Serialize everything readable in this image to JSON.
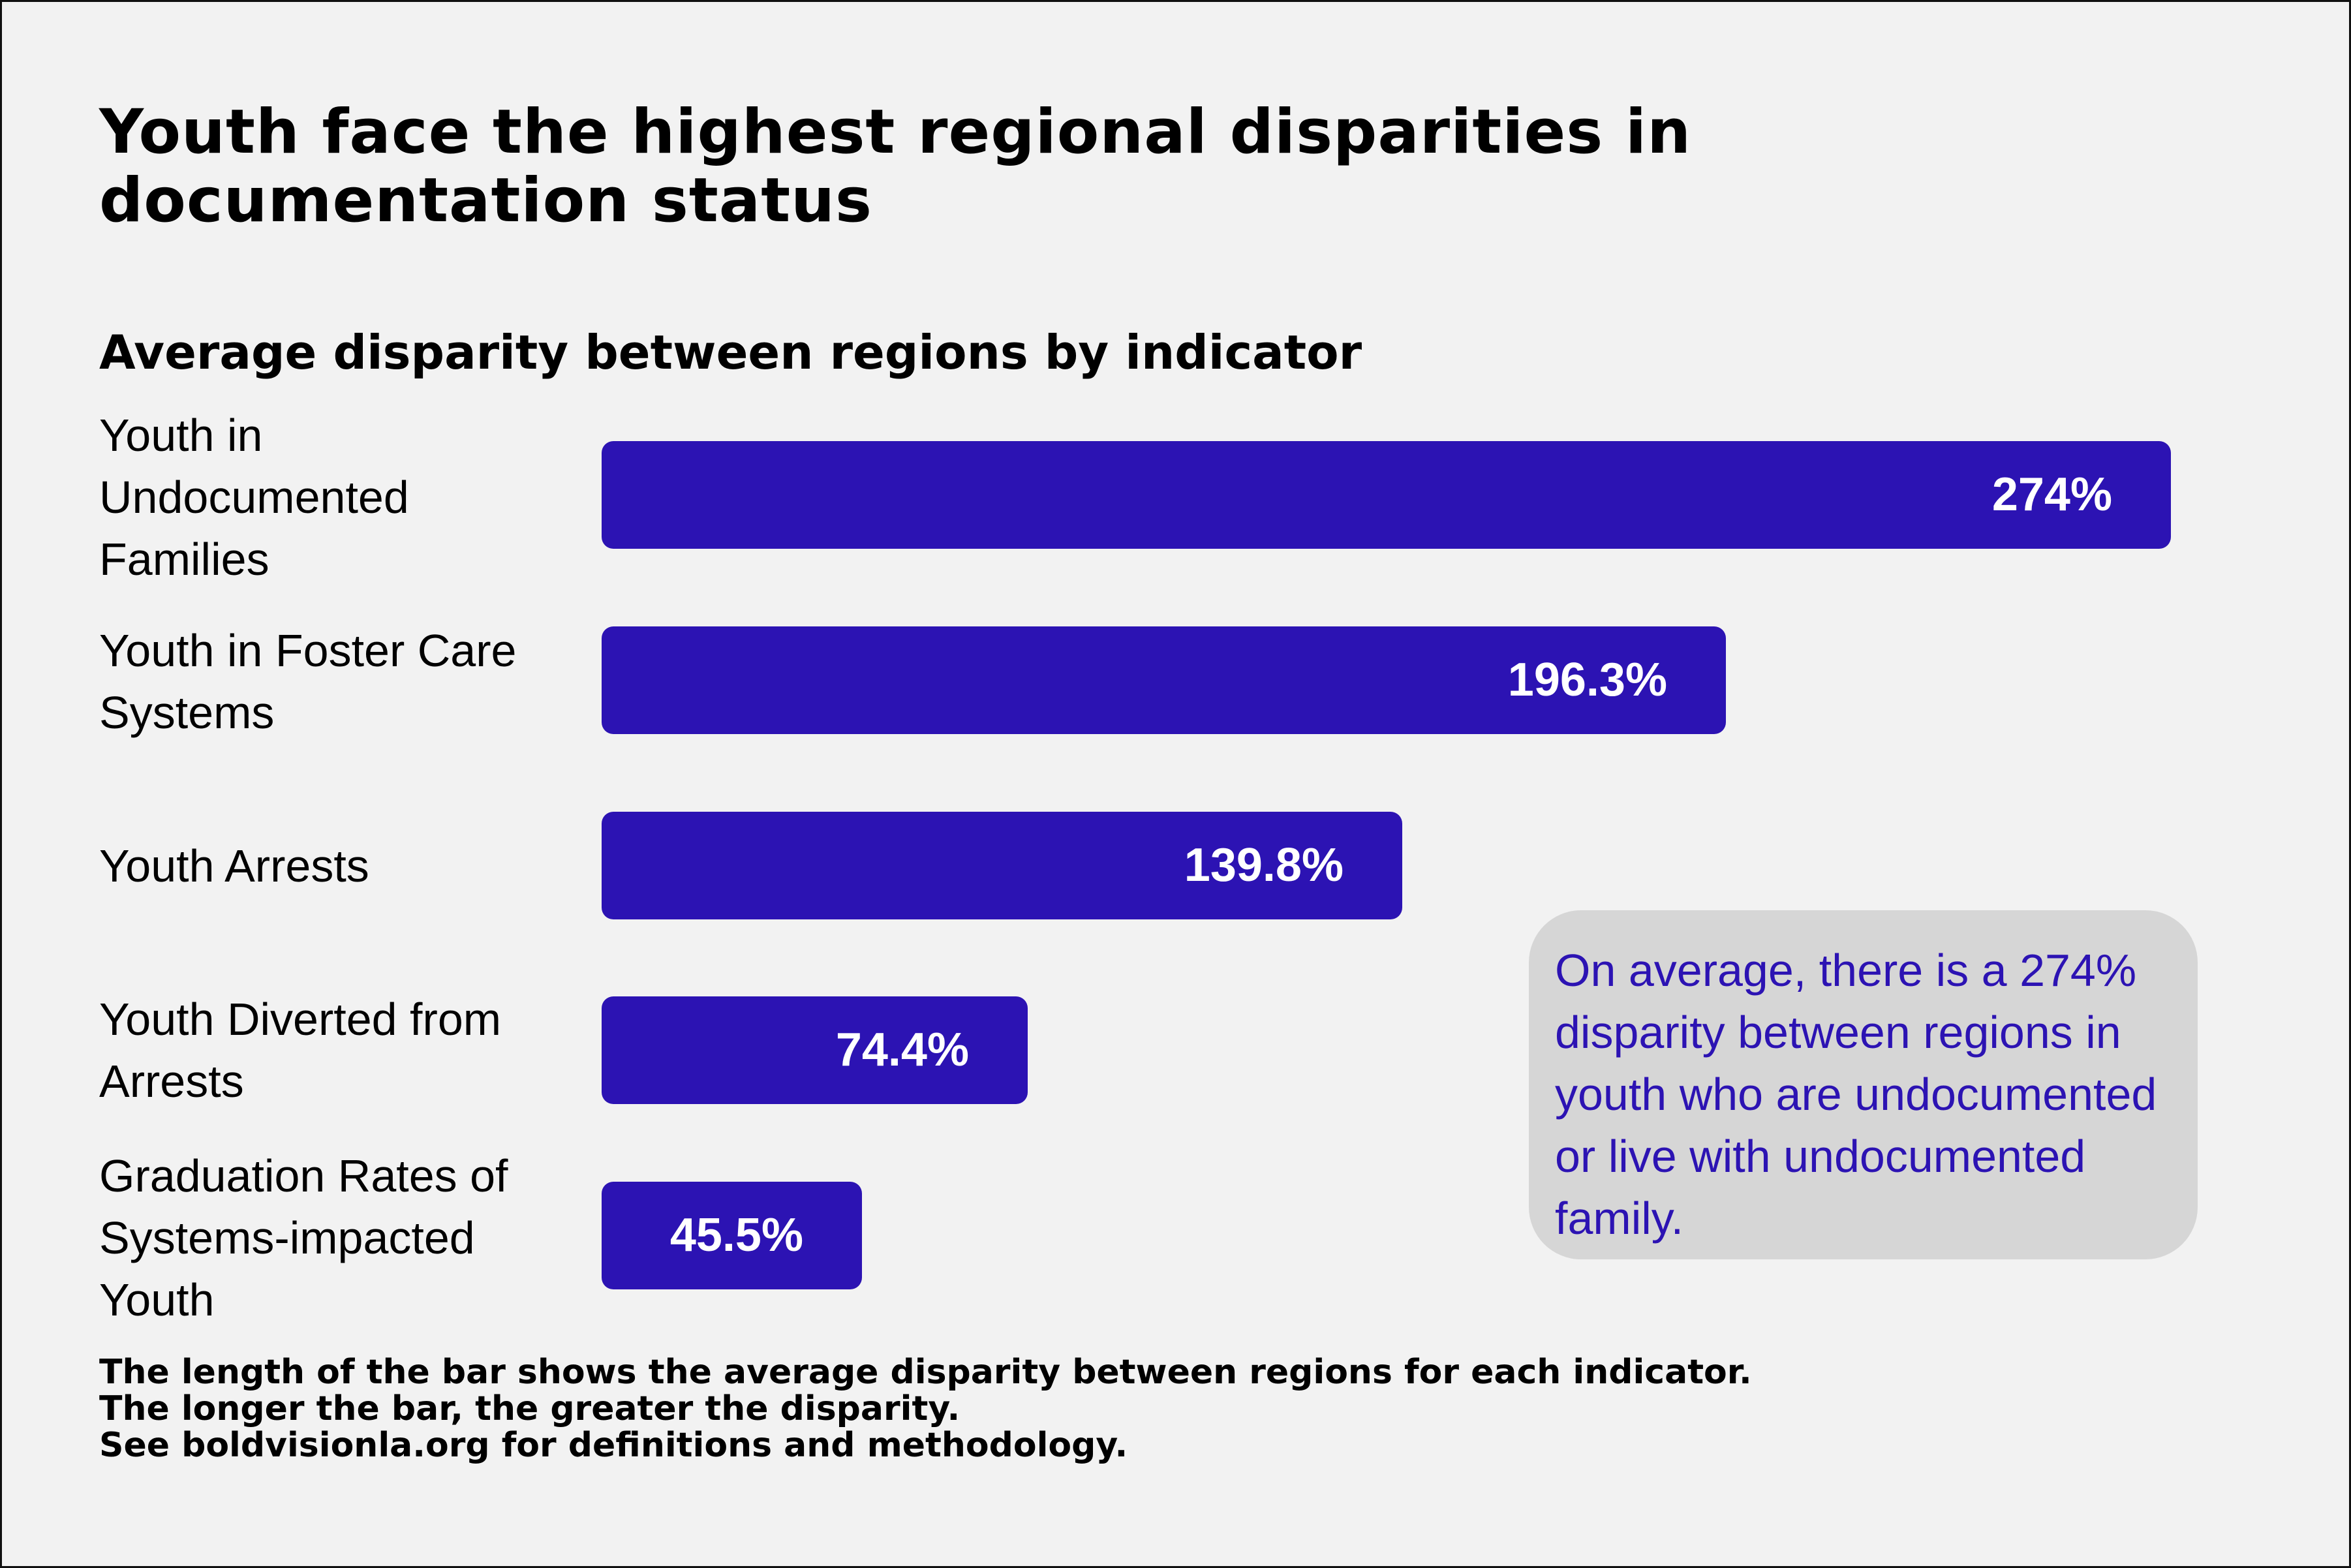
{
  "chart_data": {
    "type": "bar",
    "orientation": "horizontal",
    "title": "Youth face the highest regional disparities in documentation status",
    "subtitle": "Average disparity between regions by indicator",
    "categories": [
      "Youth in Undocumented Families",
      "Youth in Foster Care Systems",
      "Youth Arrests",
      "Youth Diverted from Arrests",
      "Graduation Rates of Systems-impacted Youth"
    ],
    "values": [
      274,
      196.3,
      139.8,
      74.4,
      45.5
    ],
    "value_labels": [
      "274%",
      "196.3%",
      "139.8%",
      "74.4%",
      "45.5%"
    ],
    "unit": "%",
    "bar_color": "#2c13b3",
    "grid": false,
    "annotation": "On average, there is a 274% disparity between regions in youth who are undocumented or live with undocumented family.",
    "footnote": [
      "The length of the bar shows the average disparity between regions for each indicator.",
      "The longer the bar, the greater the disparity.",
      "See boldvisionla.org for definitions and methodology."
    ]
  }
}
